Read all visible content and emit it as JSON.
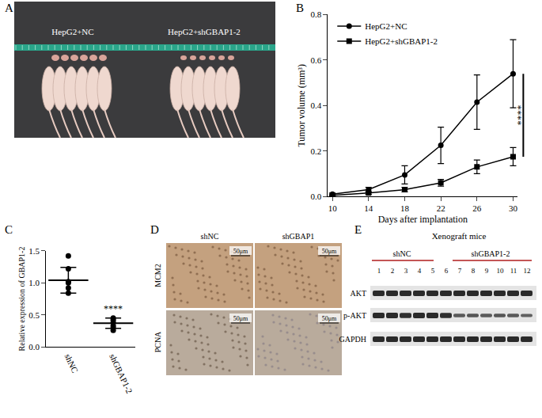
{
  "panel_labels": [
    "A",
    "B",
    "C",
    "D",
    "E"
  ],
  "chart_data": [
    {
      "type": "line",
      "x_label": "Days after implantation",
      "y_label": "Tumor volume (mm³)",
      "x": [
        10,
        14,
        18,
        22,
        26,
        30
      ],
      "series": [
        {
          "name": "HepG2+NC",
          "color": "#000000",
          "marker": "circle",
          "values": [
            0.01,
            0.03,
            0.095,
            0.225,
            0.415,
            0.54
          ],
          "errors": [
            0.005,
            0.01,
            0.04,
            0.08,
            0.12,
            0.15
          ]
        },
        {
          "name": "HepG2+shGBAP1-2",
          "color": "#000000",
          "marker": "square",
          "values": [
            0.005,
            0.015,
            0.03,
            0.06,
            0.13,
            0.175
          ],
          "errors": [
            0.003,
            0.005,
            0.01,
            0.015,
            0.03,
            0.04
          ]
        }
      ],
      "xlim": [
        9.5,
        30.5
      ],
      "xticks": [
        10,
        14,
        18,
        22,
        26,
        30
      ],
      "ylim": [
        0,
        0.8
      ],
      "yticks": [
        {
          "value": 0,
          "label": "0.0"
        },
        {
          "value": 0.2,
          "label": "0.2"
        },
        {
          "value": 0.4,
          "label": "0.4"
        },
        {
          "value": 0.6,
          "label": "0.6"
        },
        {
          "value": 0.8,
          "label": "0.8"
        }
      ],
      "annotations": [
        "****"
      ],
      "legend": "upper left",
      "grid": false
    },
    {
      "type": "scatter",
      "y_label": "Relative expression of GBAP1-2",
      "categories": [
        "shNC",
        "shGBAP1-2"
      ],
      "values": [
        [
          1.42,
          1.22,
          1.02,
          1.0,
          0.92,
          0.84
        ],
        [
          0.45,
          0.42,
          0.38,
          0.33,
          0.3,
          0.26
        ]
      ],
      "mean": [
        1.04,
        0.37
      ],
      "sd": [
        0.2,
        0.08
      ],
      "color": "#000000",
      "ylim": [
        0,
        1.5
      ],
      "yticks": [
        {
          "value": 0,
          "label": "0.0"
        },
        {
          "value": 0.5,
          "label": "0.5"
        },
        {
          "value": 1,
          "label": "1.0"
        },
        {
          "value": 1.5,
          "label": "1.5"
        }
      ],
      "annotations": [
        "****"
      ],
      "grid": false
    }
  ],
  "photo": {
    "groups": [
      "HepG2+NC",
      "HepG2+shGBAP1-2"
    ]
  },
  "ihc": {
    "columns": [
      "shNC",
      "shGBAP1"
    ],
    "rows": [
      "MCM2",
      "PCNA"
    ],
    "scale_bar": "50μm"
  },
  "western_blot": {
    "title": "Xenograft mice",
    "groups": [
      "shNC",
      "shGBAP1-2"
    ],
    "lanes": [
      1,
      2,
      3,
      4,
      5,
      6,
      7,
      8,
      9,
      10,
      11,
      12
    ],
    "rows": [
      "AKT",
      "p-AKT",
      "GAPDH"
    ]
  }
}
